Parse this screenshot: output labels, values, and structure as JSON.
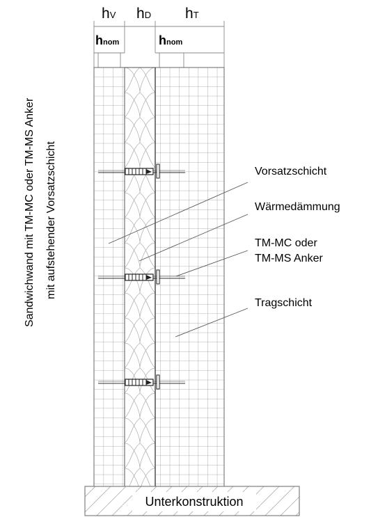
{
  "vertical_title": {
    "line1": "Sandwichwand mit TM-MC oder TM-MS Anker",
    "line2": "mit aufstehender Vorsatzschicht"
  },
  "dimensions": {
    "h_v": {
      "base": "h",
      "sub": "V"
    },
    "h_d": {
      "base": "h",
      "sub": "D"
    },
    "h_t": {
      "base": "h",
      "sub": "T"
    },
    "h_nom_left": {
      "base": "h",
      "sub": "nom"
    },
    "h_nom_right": {
      "base": "h",
      "sub": "nom"
    }
  },
  "callouts": {
    "vorsatzschicht": "Vorsatzschicht",
    "waermedaemmung": "Wärmedämmung",
    "anker_line1": "TM-MC oder",
    "anker_line2": "TM-MS Anker",
    "tragschicht": "Tragschicht"
  },
  "base_label": "Unterkonstruktion",
  "anchor_count": 3
}
